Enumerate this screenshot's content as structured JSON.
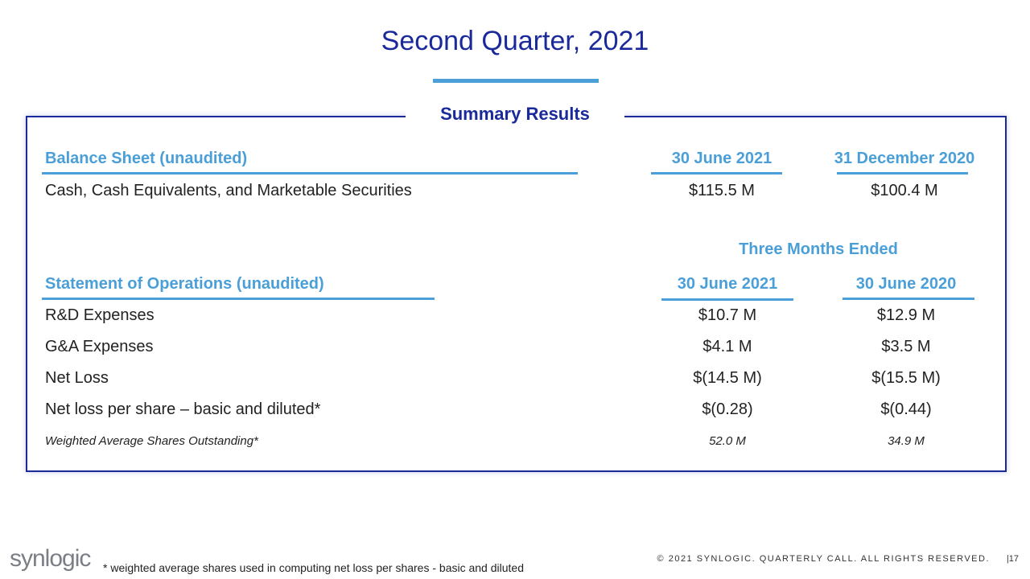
{
  "title": "Second Quarter, 2021",
  "section_title": "Summary Results",
  "balance_sheet": {
    "header": [
      "Balance Sheet (unaudited)",
      "30 June 2021",
      "31 December 2020"
    ],
    "rows": [
      [
        "Cash, Cash Equivalents, and Marketable Securities",
        "$115.5 M",
        "$100.4 M"
      ]
    ]
  },
  "operations": {
    "group_header": "Three Months Ended",
    "header": [
      "Statement of Operations (unaudited)",
      "30 June 2021",
      "30 June 2020"
    ],
    "rows": [
      [
        "R&D Expenses",
        "$10.7 M",
        "$12.9 M"
      ],
      [
        "G&A Expenses",
        "$4.1 M",
        "$3.5 M"
      ],
      [
        "Net Loss",
        "$(14.5 M)",
        "$(15.5 M)"
      ],
      [
        "Net loss per share – basic and diluted*",
        "$(0.28)",
        "$(0.44)"
      ],
      [
        "Weighted Average Shares Outstanding*",
        "52.0 M",
        "34.9 M"
      ]
    ]
  },
  "footnote": "* weighted average shares used in computing net loss per shares - basic and diluted",
  "footer": {
    "logo": "synlogic",
    "copyright": "© 2021 SYNLOGIC. QUARTERLY CALL. ALL RIGHTS RESERVED.",
    "page": "|17"
  }
}
